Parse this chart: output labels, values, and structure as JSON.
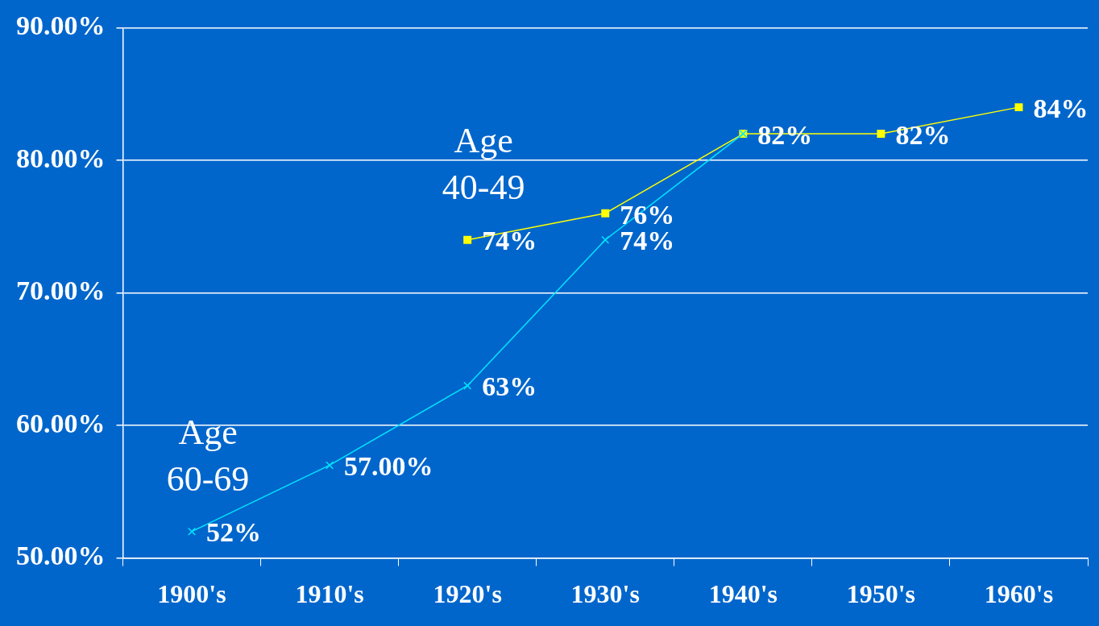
{
  "chart_data": {
    "type": "line",
    "categories": [
      "1900's",
      "1910's",
      "1920's",
      "1930's",
      "1940's",
      "1950's",
      "1960's"
    ],
    "series": [
      {
        "name": "Age 60-69",
        "color": "#00e6ff",
        "marker": "cross",
        "values": [
          52,
          57,
          63,
          74,
          82,
          null,
          null
        ],
        "value_labels": [
          "52%",
          "57.00%",
          "63%",
          "74%",
          null,
          null,
          null
        ]
      },
      {
        "name": "Age 40-49",
        "color": "#ffff00",
        "marker": "square",
        "values": [
          null,
          null,
          74,
          76,
          82,
          82,
          84
        ],
        "value_labels": [
          null,
          null,
          "74%",
          "76%",
          "82%",
          "82%",
          "84%"
        ]
      }
    ],
    "ylim": [
      50,
      90
    ],
    "yticks": [
      {
        "value": 50,
        "label": "50.00%"
      },
      {
        "value": 60,
        "label": "60.00%"
      },
      {
        "value": 70,
        "label": "70.00%"
      },
      {
        "value": 80,
        "label": "80.00%"
      },
      {
        "value": 90,
        "label": "90.00%"
      }
    ],
    "grid": "y",
    "legend": false
  }
}
